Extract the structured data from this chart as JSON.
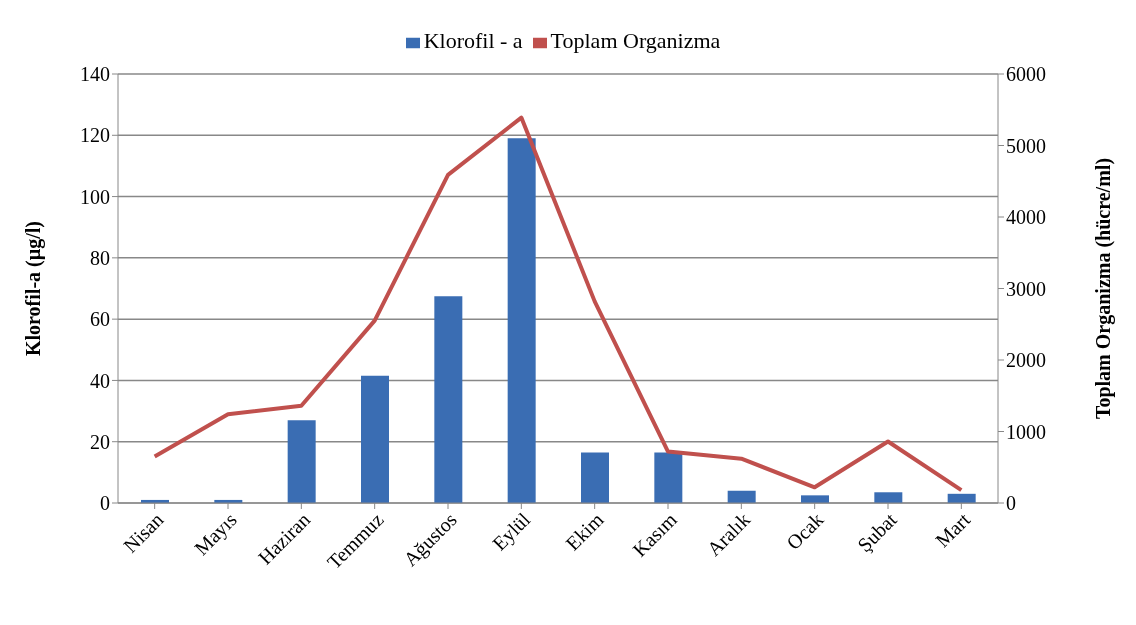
{
  "chart_data": {
    "type": "bar",
    "categories": [
      "Nisan",
      "Mayıs",
      "Haziran",
      "Temmuz",
      "Ağustos",
      "Eylül",
      "Ekim",
      "Kasım",
      "Aralık",
      "Ocak",
      "Şubat",
      "Mart"
    ],
    "series": [
      {
        "name": "Klorofil - a",
        "color": "#3a6db3",
        "values": [
          1,
          1,
          27,
          41.5,
          67.5,
          119,
          16.5,
          16.5,
          4,
          2.5,
          3.5,
          3
        ]
      },
      {
        "name": "Toplam Organizma",
        "type": "line",
        "axis": "y2",
        "color": "#c0504d",
        "values": [
          650,
          1240,
          1360,
          2550,
          4590,
          5390,
          2820,
          720,
          620,
          220,
          860,
          180
        ]
      }
    ],
    "ylabel": "Klorofil-a (µg/l)",
    "y2label": "Toplam Organizma (hücre/ml)",
    "ylim": [
      0,
      140
    ],
    "yticks": [
      0,
      20,
      40,
      60,
      80,
      100,
      120,
      140
    ],
    "y2lim": [
      0,
      6000
    ],
    "y2ticks": [
      0,
      1000,
      2000,
      3000,
      4000,
      5000,
      6000
    ],
    "grid": "y",
    "legend": "top",
    "marker": "none",
    "line_style": "solid"
  }
}
